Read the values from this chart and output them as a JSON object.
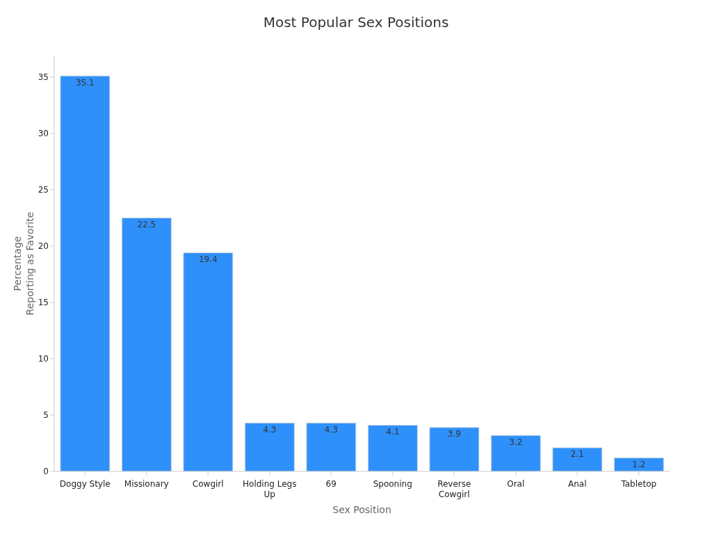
{
  "chart_data": {
    "type": "bar",
    "title": "Most Popular Sex Positions",
    "xlabel": "Sex Position",
    "ylabel": "Percentage Reporting as Favorite",
    "categories": [
      "Doggy Style",
      "Missionary",
      "Cowgirl",
      "Holding Legs Up",
      "69",
      "Spooning",
      "Reverse Cowgirl",
      "Oral",
      "Anal",
      "Tabletop"
    ],
    "values": [
      35.1,
      22.5,
      19.4,
      4.3,
      4.3,
      4.1,
      3.9,
      3.2,
      2.1,
      1.2
    ],
    "color": "#2e90fa",
    "ylim": [
      0,
      36.9
    ],
    "yticks": [
      0,
      5,
      10,
      15,
      20,
      25,
      30,
      35
    ],
    "grid": false,
    "legend": false,
    "data_labels": true
  }
}
